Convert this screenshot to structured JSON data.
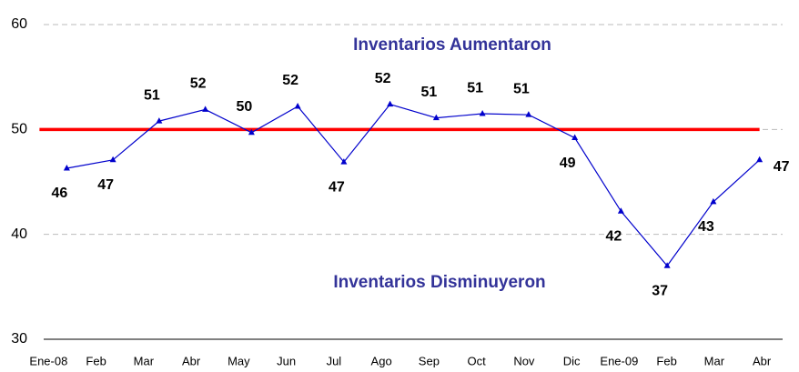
{
  "chart_data": {
    "type": "line",
    "categories": [
      "Ene-08",
      "Feb",
      "Mar",
      "Abr",
      "May",
      "Jun",
      "Jul",
      "Ago",
      "Sep",
      "Oct",
      "Nov",
      "Dic",
      "Ene-09",
      "Feb",
      "Mar",
      "Abr"
    ],
    "series": [
      {
        "color": "#0000cc",
        "values": [
          46.3,
          47.1,
          50.8,
          51.9,
          49.7,
          52.2,
          46.9,
          52.4,
          51.1,
          51.5,
          51.4,
          49.2,
          42.2,
          37.0,
          43.1,
          47.1
        ],
        "value_labels": [
          "46",
          "47",
          "51",
          "52",
          "50",
          "52",
          "47",
          "52",
          "51",
          "51",
          "51",
          "49",
          "42",
          "37",
          "43",
          "47"
        ]
      }
    ],
    "reference_line": {
      "value": 50,
      "color": "#ff0000"
    },
    "annotations": [
      "Inventarios Aumentaron",
      "Inventarios Disminuyeron"
    ],
    "ylim": [
      30,
      60
    ],
    "yticks": [
      30,
      40,
      50,
      60
    ],
    "grid": true
  }
}
